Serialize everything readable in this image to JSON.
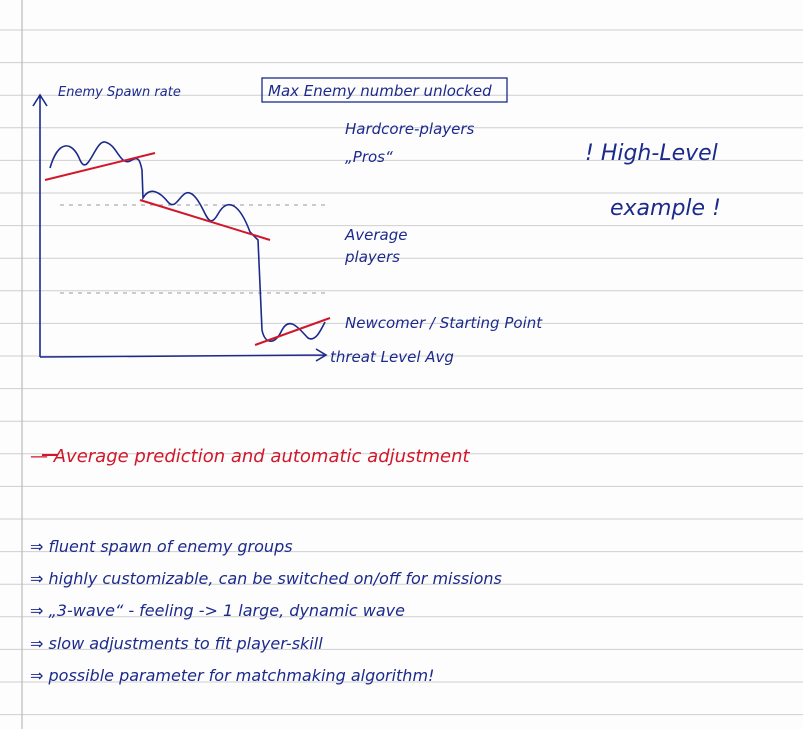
{
  "sketch": {
    "y_axis_label": "Enemy Spawn rate",
    "boxed_note": "Max Enemy number unlocked",
    "zones": [
      "Hardcore-players",
      "„Pros“",
      "Average",
      "players",
      "Newcomer / Starting Point"
    ],
    "x_axis_label": "threat Level Avg",
    "side_note": [
      "! High-Level",
      "example !"
    ]
  },
  "summary": "— Average prediction and automatic adjustment",
  "bullets": [
    "⇒ fluent spawn of enemy groups",
    "⇒ highly customizable, can be switched on/off for missions",
    "⇒ „3-wave“ - feeling -> 1 large, dynamic wave",
    "⇒ slow adjustments to fit player-skill",
    "⇒ possible parameter for matchmaking algorithm!"
  ]
}
